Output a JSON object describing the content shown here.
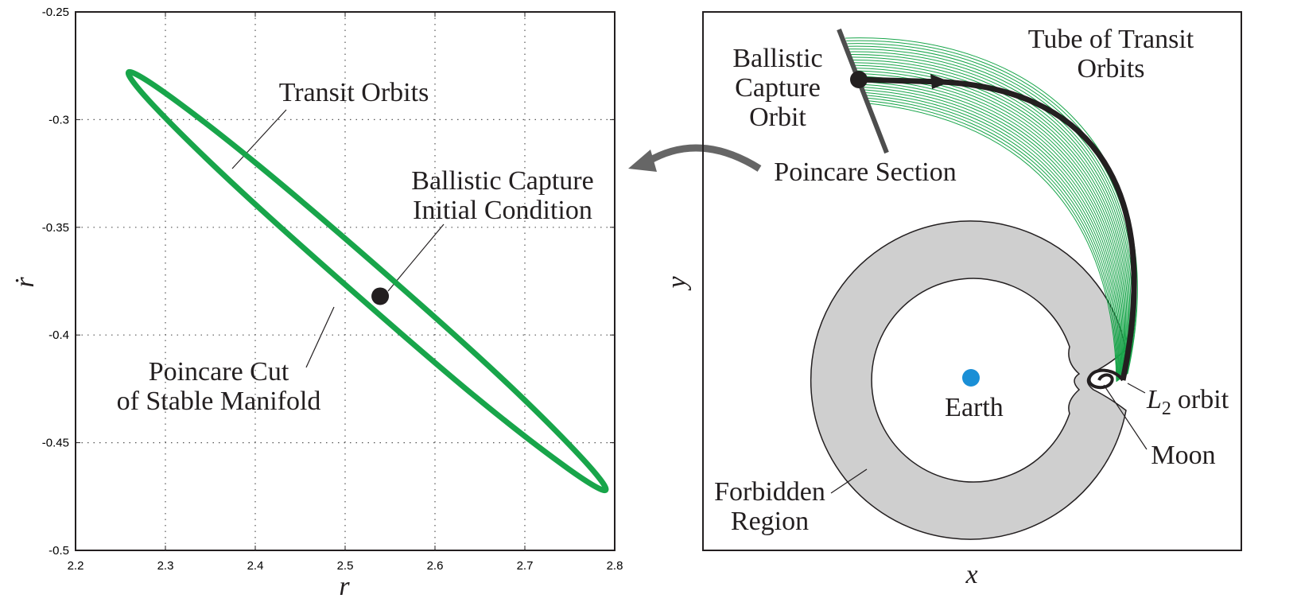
{
  "chart_data": {
    "type": "line",
    "x_label": "r",
    "y_label": "ṙ",
    "xlim": [
      2.2,
      2.8
    ],
    "ylim": [
      -0.5,
      -0.25
    ],
    "xticks": [
      2.2,
      2.3,
      2.4,
      2.5,
      2.6,
      2.7,
      2.8
    ],
    "yticks": [
      -0.5,
      -0.45,
      -0.4,
      -0.35,
      -0.3,
      -0.25
    ],
    "grid": true,
    "series": [
      {
        "color": "#18a54a",
        "closed": true,
        "x": [
          2.79,
          2.761,
          2.669,
          2.538,
          2.403,
          2.301,
          2.259,
          2.288,
          2.381,
          2.512,
          2.646,
          2.748
        ],
        "values": [
          -0.472,
          -0.456,
          -0.418,
          -0.369,
          -0.321,
          -0.288,
          -0.278,
          -0.294,
          -0.332,
          -0.381,
          -0.429,
          -0.462
        ]
      }
    ],
    "point": {
      "x": 2.539,
      "value": -0.382,
      "color": "#231f20"
    },
    "annotations": {
      "transit": [
        "Transit Orbits"
      ],
      "capture": [
        "Ballistic Capture",
        "Initial Condition"
      ],
      "cut": [
        "Poincare Cut",
        "of Stable Manifold"
      ]
    }
  },
  "diagram": {
    "x_label": "x",
    "y_label": "y",
    "tube": [
      "Tube of Transit",
      "Orbits"
    ],
    "capture": [
      "Ballistic",
      "Capture",
      "Orbit"
    ],
    "section": "Poincare Section",
    "earth": "Earth",
    "l2": {
      "name": "L",
      "subscript": "2",
      "text": "orbit"
    },
    "moon": "Moon",
    "forbidden": [
      "Forbidden",
      "Region"
    ]
  }
}
